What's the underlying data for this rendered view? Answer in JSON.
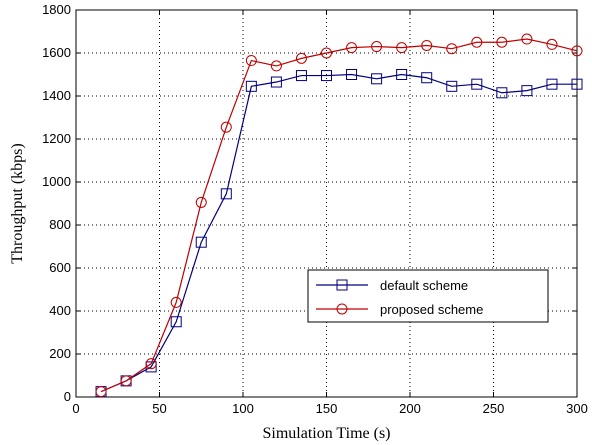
{
  "chart_data": {
    "type": "line",
    "title": "",
    "xlabel": "Simulation Time (s)",
    "ylabel": "Throughput (kbps)",
    "xlim": [
      0,
      300
    ],
    "ylim": [
      0,
      1800
    ],
    "xticks": [
      0,
      50,
      100,
      150,
      200,
      250,
      300
    ],
    "yticks": [
      0,
      200,
      400,
      600,
      800,
      1000,
      1200,
      1400,
      1600,
      1800
    ],
    "grid": true,
    "legend_position": "center-right",
    "series": [
      {
        "name": "default scheme",
        "marker": "square",
        "color": "#000080",
        "x": [
          15,
          30,
          45,
          60,
          75,
          90,
          105,
          120,
          135,
          150,
          165,
          180,
          195,
          210,
          225,
          240,
          255,
          270,
          285,
          300
        ],
        "y": [
          25,
          75,
          140,
          350,
          720,
          945,
          1445,
          1465,
          1495,
          1495,
          1500,
          1480,
          1500,
          1485,
          1445,
          1455,
          1415,
          1425,
          1455,
          1455
        ]
      },
      {
        "name": "proposed scheme",
        "marker": "circle",
        "color": "#c00000",
        "x": [
          15,
          30,
          45,
          60,
          75,
          90,
          105,
          120,
          135,
          150,
          165,
          180,
          195,
          210,
          225,
          240,
          255,
          270,
          285,
          300
        ],
        "y": [
          25,
          75,
          155,
          440,
          905,
          1255,
          1565,
          1540,
          1575,
          1600,
          1625,
          1630,
          1625,
          1635,
          1620,
          1650,
          1650,
          1665,
          1640,
          1610
        ]
      }
    ]
  }
}
